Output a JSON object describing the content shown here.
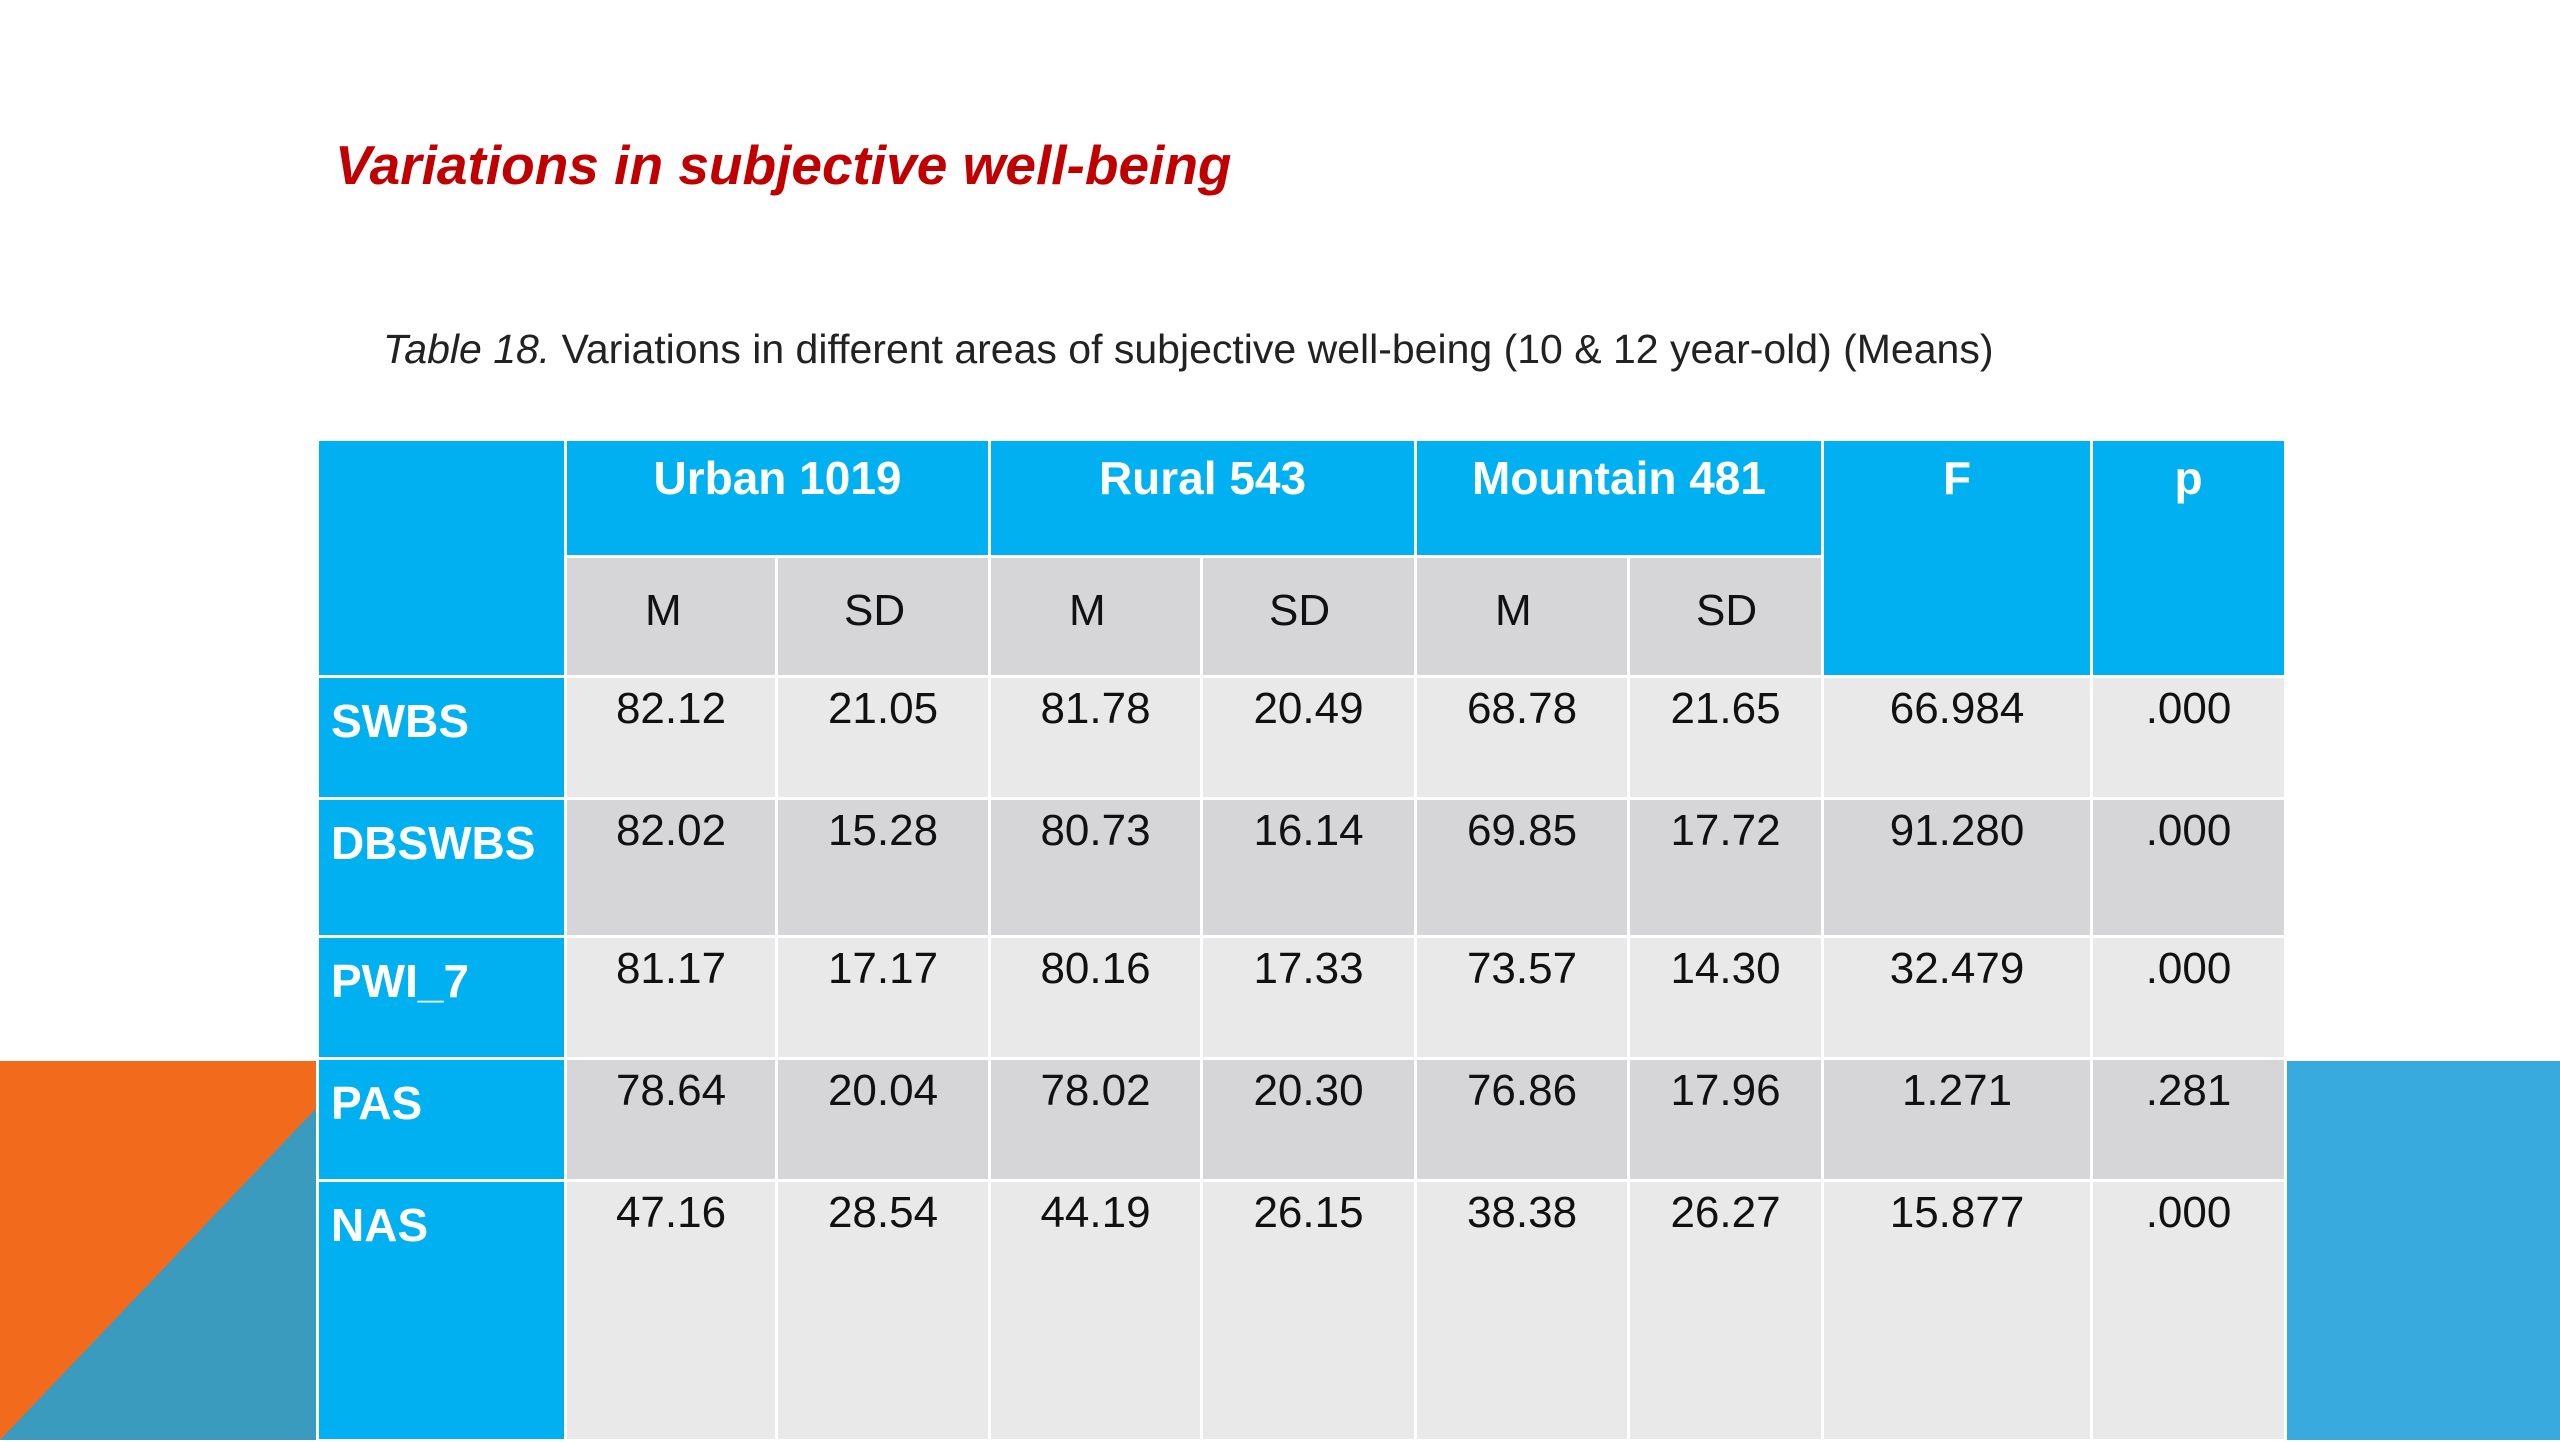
{
  "slide": {
    "title": "Variations in subjective well-being",
    "caption_label": "Table 18.",
    "caption_text": " Variations in different areas of subjective well-being (10 & 12 year-old) (Means)"
  },
  "table": {
    "groups": [
      "Urban 1019",
      "Rural 543",
      "Mountain 481",
      "F",
      "p"
    ],
    "subheaders": [
      "M",
      "SD",
      "M",
      "SD",
      "M",
      "SD"
    ],
    "rows": [
      {
        "label": "SWBS",
        "values": [
          "82.12",
          "21.05",
          "81.78",
          "20.49",
          "68.78",
          "21.65",
          "66.984",
          ".000"
        ]
      },
      {
        "label": "DBSWBS",
        "values": [
          "82.02",
          "15.28",
          "80.73",
          "16.14",
          "69.85",
          "17.72",
          "91.280",
          ".000"
        ]
      },
      {
        "label": "PWI_7",
        "values": [
          "81.17",
          "17.17",
          "80.16",
          "17.33",
          "73.57",
          "14.30",
          "32.479",
          ".000"
        ]
      },
      {
        "label": "PAS",
        "values": [
          "78.64",
          "20.04",
          "78.02",
          "20.30",
          "76.86",
          "17.96",
          "1.271",
          ".281"
        ]
      },
      {
        "label": "NAS",
        "values": [
          "47.16",
          "28.54",
          "44.19",
          "26.15",
          "38.38",
          "26.27",
          "15.877",
          ".000"
        ]
      }
    ]
  },
  "colors": {
    "title": "#c00000",
    "header_blue": "#00b0f0",
    "cell_light": "#e9e9ea",
    "cell_dark": "#d6d6d8",
    "deco_orange": "#f26b1d",
    "deco_teal": "#3a9bbf",
    "deco_blue": "#39aadd"
  }
}
